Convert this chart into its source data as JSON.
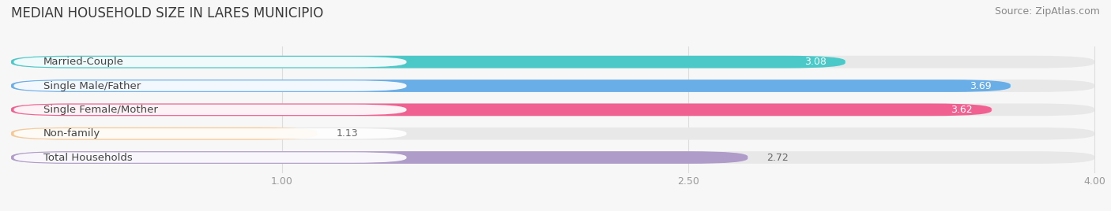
{
  "title": "MEDIAN HOUSEHOLD SIZE IN LARES MUNICIPIO",
  "source": "Source: ZipAtlas.com",
  "categories": [
    "Married-Couple",
    "Single Male/Father",
    "Single Female/Mother",
    "Non-family",
    "Total Households"
  ],
  "values": [
    3.08,
    3.69,
    3.62,
    1.13,
    2.72
  ],
  "bar_colors": [
    "#4bc8c8",
    "#6aaee8",
    "#f06090",
    "#f5c894",
    "#b09cc8"
  ],
  "bar_bg_color": "#e8e8e8",
  "xlim_start": 0.0,
  "xlim_end": 4.0,
  "xticks": [
    1.0,
    2.5,
    4.0
  ],
  "title_fontsize": 12,
  "source_fontsize": 9,
  "bar_height": 0.52,
  "background_color": "#f7f7f7",
  "value_label_inside": [
    true,
    true,
    true,
    false,
    false
  ],
  "label_pill_color": "#ffffff",
  "label_text_color": "#444444",
  "value_color_inside": "#ffffff",
  "value_color_outside": "#666666",
  "grid_color": "#dddddd",
  "tick_color": "#999999"
}
